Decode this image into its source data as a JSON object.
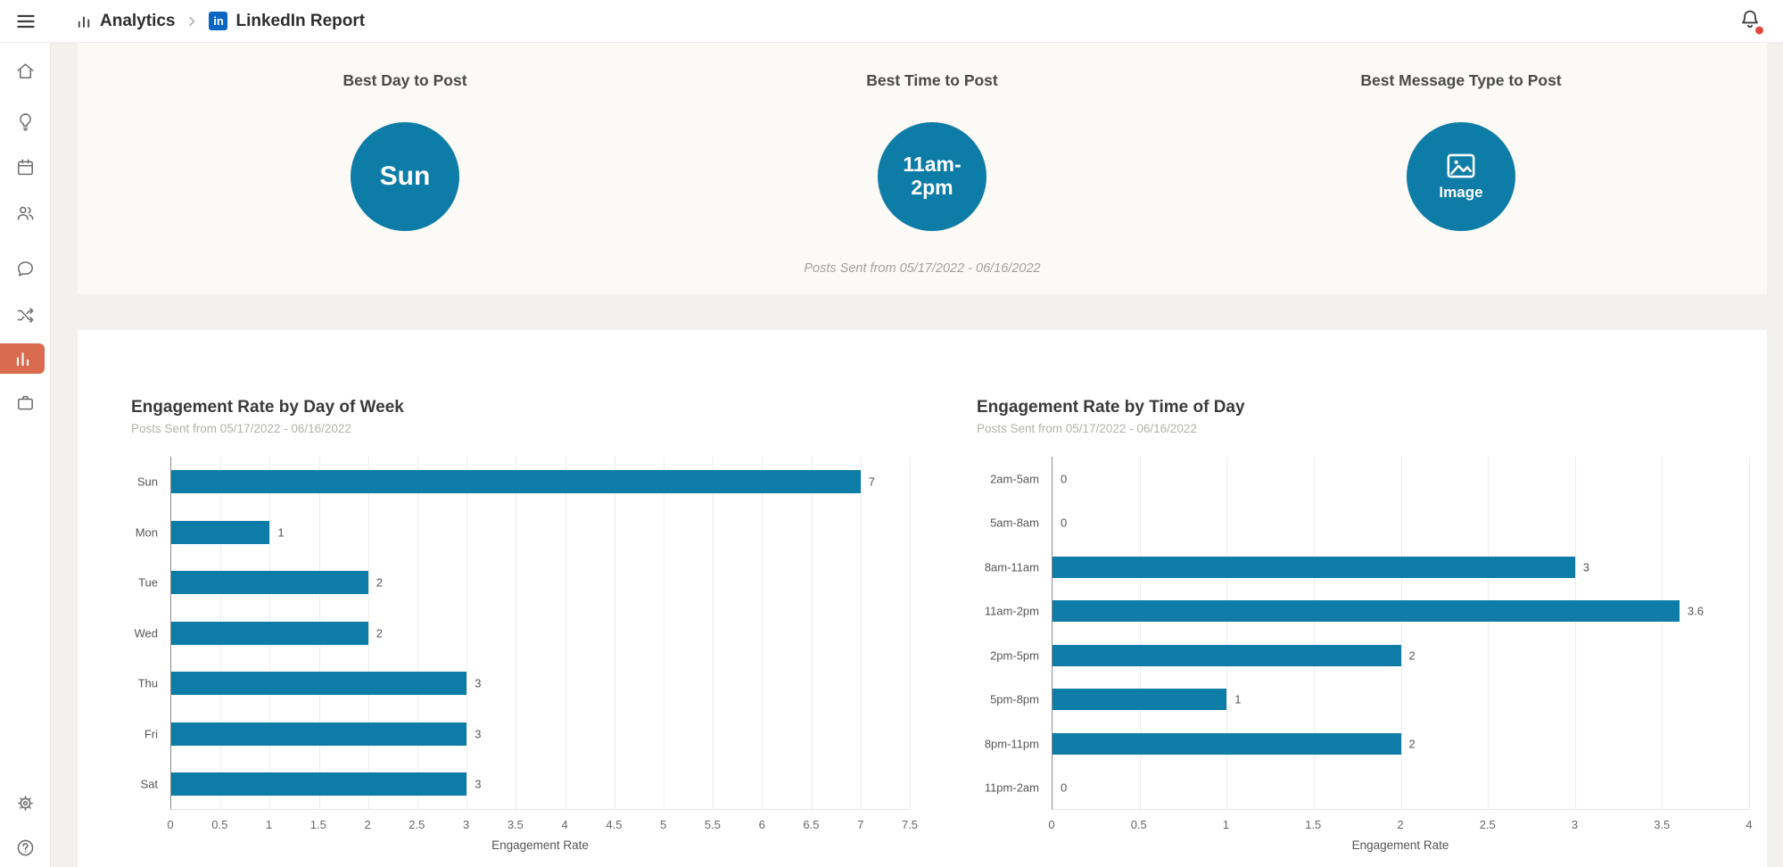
{
  "colors": {
    "chart_blue": "#0d7ca6",
    "active_orange": "#d96b4f",
    "linkedin_blue": "#0a66c2",
    "notification_red": "#e0493f"
  },
  "topbar": {
    "breadcrumb": [
      {
        "label": "Analytics",
        "icon": "bar-chart-icon"
      },
      {
        "label": "LinkedIn Report",
        "icon": "linkedin-icon"
      }
    ],
    "linkedin_badge": "in",
    "icons": [
      "hamburger-icon",
      "bell-icon"
    ],
    "has_unread_notification": true
  },
  "sidebar": {
    "items": [
      {
        "icon": "home-icon",
        "active": false
      },
      {
        "icon": "lightbulb-icon",
        "active": false
      },
      {
        "icon": "calendar-icon",
        "active": false
      },
      {
        "icon": "users-icon",
        "active": false
      },
      {
        "icon": "chat-bubble-icon",
        "active": false
      },
      {
        "icon": "shuffle-icon",
        "active": false
      },
      {
        "icon": "bar-chart-icon",
        "active": true
      },
      {
        "icon": "briefcase-icon",
        "active": false
      },
      {
        "icon": "gear-icon",
        "active": false
      },
      {
        "icon": "help-icon",
        "active": false
      }
    ]
  },
  "hero": {
    "cards": [
      {
        "title": "Best Day to Post",
        "value": "Sun"
      },
      {
        "title": "Best Time to Post",
        "value": "11am-\n2pm"
      },
      {
        "title": "Best Message Type to Post",
        "value": "Image",
        "icon": "image-icon"
      }
    ],
    "footnote": "Posts Sent from 05/17/2022 - 06/16/2022"
  },
  "chart_data": [
    {
      "type": "bar",
      "orientation": "horizontal",
      "title": "Engagement Rate by Day of Week",
      "subtitle": "Posts Sent from 05/17/2022 - 06/16/2022",
      "categories": [
        "Sun",
        "Mon",
        "Tue",
        "Wed",
        "Thu",
        "Fri",
        "Sat"
      ],
      "values": [
        7,
        1,
        2,
        2,
        3,
        3,
        3
      ],
      "xlabel": "Engagement Rate",
      "xlim": [
        0,
        7.5
      ],
      "tick_step": 0.5,
      "grid": true,
      "legend": "none",
      "bar_color": "#0d7ca6",
      "value_labels": true
    },
    {
      "type": "bar",
      "orientation": "horizontal",
      "title": "Engagement Rate by Time of Day",
      "subtitle": "Posts Sent from 05/17/2022 - 06/16/2022",
      "categories": [
        "2am-5am",
        "5am-8am",
        "8am-11am",
        "11am-2pm",
        "2pm-5pm",
        "5pm-8pm",
        "8pm-11pm",
        "11pm-2am"
      ],
      "values": [
        0,
        0,
        3,
        3.6,
        2,
        1,
        2,
        0
      ],
      "xlabel": "Engagement Rate",
      "xlim": [
        0,
        4
      ],
      "tick_step": 0.5,
      "grid": true,
      "legend": "none",
      "bar_color": "#0d7ca6",
      "value_labels": true
    }
  ]
}
